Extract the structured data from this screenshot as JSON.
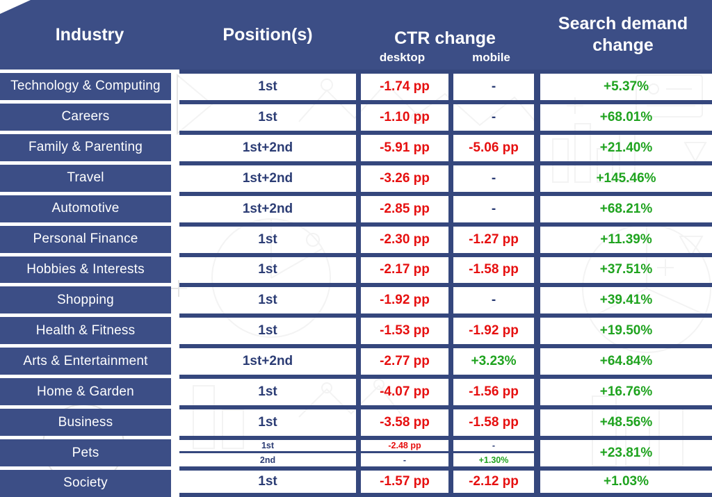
{
  "colors": {
    "blue": "#3c4e86",
    "red": "#e60f0f",
    "green": "#1fa31f",
    "navy_text": "#2b3c74"
  },
  "header": {
    "industry": "Industry",
    "positions": "Position(s)",
    "ctr_change": "CTR change",
    "desktop": "desktop",
    "mobile": "mobile",
    "search_demand": "Search demand change"
  },
  "chart_data": {
    "type": "table",
    "title": "CTR change and search demand change by industry",
    "columns": [
      "Industry",
      "Position(s)",
      "CTR change desktop",
      "CTR change mobile",
      "Search demand change"
    ],
    "rows": [
      {
        "industry": "Technology & Computing",
        "position": "1st",
        "desktop": "-1.74 pp",
        "mobile": "-",
        "demand": "+5.37%"
      },
      {
        "industry": "Careers",
        "position": "1st",
        "desktop": "-1.10 pp",
        "mobile": "-",
        "demand": "+68.01%"
      },
      {
        "industry": "Family & Parenting",
        "position": "1st+2nd",
        "desktop": "-5.91 pp",
        "mobile": "-5.06 pp",
        "demand": "+21.40%"
      },
      {
        "industry": "Travel",
        "position": "1st+2nd",
        "desktop": "-3.26 pp",
        "mobile": "-",
        "demand": "+145.46%"
      },
      {
        "industry": "Automotive",
        "position": "1st+2nd",
        "desktop": "-2.85 pp",
        "mobile": "-",
        "demand": "+68.21%"
      },
      {
        "industry": "Personal Finance",
        "position": "1st",
        "desktop": "-2.30 pp",
        "mobile": "-1.27 pp",
        "demand": "+11.39%"
      },
      {
        "industry": "Hobbies & Interests",
        "position": "1st",
        "desktop": "-2.17 pp",
        "mobile": "-1.58 pp",
        "demand": "+37.51%"
      },
      {
        "industry": "Shopping",
        "position": "1st",
        "desktop": "-1.92 pp",
        "mobile": "-",
        "demand": "+39.41%"
      },
      {
        "industry": "Health & Fitness",
        "position": "1st",
        "desktop": "-1.53 pp",
        "mobile": "-1.92 pp",
        "demand": "+19.50%"
      },
      {
        "industry": "Arts & Entertainment",
        "position": "1st+2nd",
        "desktop": "-2.77 pp",
        "mobile": "+3.23%",
        "demand": "+64.84%"
      },
      {
        "industry": "Home & Garden",
        "position": "1st",
        "desktop": "-4.07 pp",
        "mobile": "-1.56 pp",
        "demand": "+16.76%"
      },
      {
        "industry": "Business",
        "position": "1st",
        "desktop": "-3.58 pp",
        "mobile": "-1.58 pp",
        "demand": "+48.56%"
      },
      {
        "industry": "Pets",
        "demand": "+23.81%",
        "sub": [
          {
            "position": "1st",
            "desktop": "-2.48 pp",
            "mobile": "-"
          },
          {
            "position": "2nd",
            "desktop": "-",
            "mobile": "+1.30%"
          }
        ]
      },
      {
        "industry": "Society",
        "position": "1st",
        "desktop": "-1.57 pp",
        "mobile": "-2.12 pp",
        "demand": "+1.03%"
      }
    ]
  }
}
